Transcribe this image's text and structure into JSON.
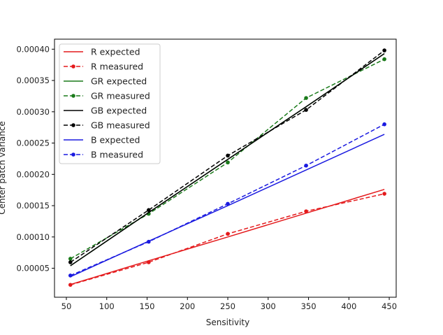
{
  "chart_data": {
    "type": "line",
    "title": "",
    "xlabel": "Sensitivity",
    "ylabel": "Center patch variance",
    "xlim": [
      35.3,
      458.6
    ],
    "ylim": [
      3.7e-06,
      0.000416
    ],
    "xticks": [
      50,
      100,
      150,
      200,
      250,
      300,
      350,
      400,
      450
    ],
    "yticks": [
      "0.00005",
      "0.00010",
      "0.00015",
      "0.00020",
      "0.00025",
      "0.00030",
      "0.00035",
      "0.00040"
    ],
    "grid": false,
    "legend_position": "top-left",
    "x": [
      55,
      152,
      250,
      347,
      444
    ],
    "series": [
      {
        "name": "R expected",
        "color": "#e41a1c",
        "style": "solid",
        "marker": false,
        "values": [
          2.4e-05,
          6.2e-05,
          0.0001,
          0.000138,
          0.000176
        ]
      },
      {
        "name": "R measured",
        "color": "#e41a1c",
        "style": "dashed",
        "marker": true,
        "values": [
          2.35e-05,
          5.96e-05,
          0.000105,
          0.000141,
          0.000169
        ]
      },
      {
        "name": "GR expected",
        "color": "#1a7a1a",
        "style": "solid",
        "marker": false,
        "values": [
          5.4e-05,
          0.000139,
          0.000224,
          0.000308,
          0.000393
        ]
      },
      {
        "name": "GR measured",
        "color": "#1a7a1a",
        "style": "dashed",
        "marker": true,
        "values": [
          6.52e-05,
          0.000137,
          0.000219,
          0.000322,
          0.000384
        ]
      },
      {
        "name": "GB expected",
        "color": "#000000",
        "style": "solid",
        "marker": false,
        "values": [
          5.4e-05,
          0.000139,
          0.000224,
          0.000308,
          0.000393
        ]
      },
      {
        "name": "GB measured",
        "color": "#000000",
        "style": "dashed",
        "marker": true,
        "values": [
          5.96e-05,
          0.000143,
          0.00023,
          0.000303,
          0.000398
        ]
      },
      {
        "name": "B expected",
        "color": "#1a1ae0",
        "style": "solid",
        "marker": false,
        "values": [
          3.65e-05,
          9.33e-05,
          0.00015,
          0.000207,
          0.000264
        ]
      },
      {
        "name": "B measured",
        "color": "#1a1ae0",
        "style": "dashed",
        "marker": true,
        "values": [
          3.84e-05,
          9.24e-05,
          0.000153,
          0.000214,
          0.00028
        ]
      }
    ]
  }
}
